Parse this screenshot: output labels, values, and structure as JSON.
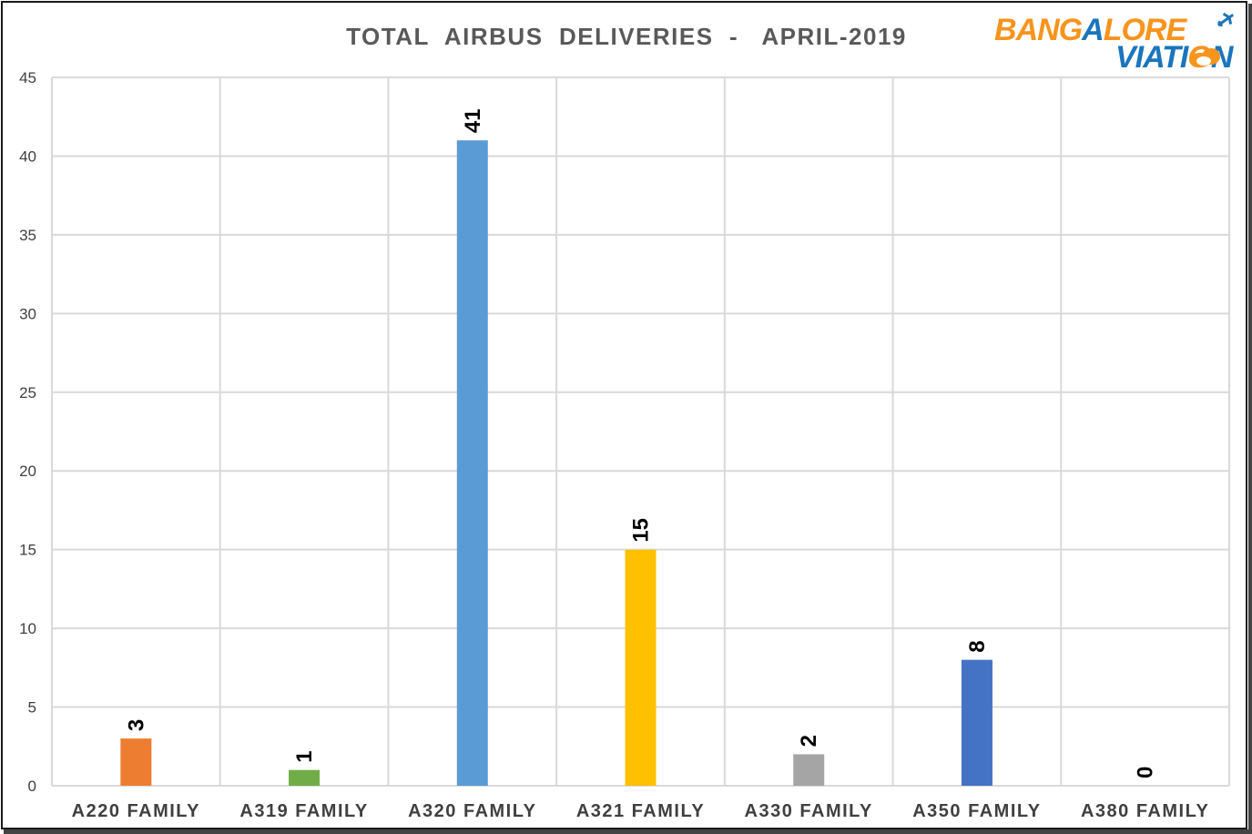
{
  "chart_data": {
    "type": "bar",
    "title": "TOTAL  AIRBUS  DELIVERIES  -   APRIL-2019",
    "categories": [
      "A220 FAMILY",
      "A319 FAMILY",
      "A320 FAMILY",
      "A321 FAMILY",
      "A330 FAMILY",
      "A350 FAMILY",
      "A380 FAMILY"
    ],
    "values": [
      3,
      1,
      41,
      15,
      2,
      8,
      0
    ],
    "colors": [
      "#ED7D31",
      "#70AD47",
      "#5B9BD5",
      "#FFC000",
      "#A5A5A5",
      "#4472C4",
      "#264478"
    ],
    "ylim": [
      0,
      45
    ],
    "yticks": [
      0,
      5,
      10,
      15,
      20,
      25,
      30,
      35,
      40,
      45
    ],
    "xlabel": "",
    "ylabel": "",
    "grid": true,
    "legend": "none"
  },
  "logo": {
    "line1": "BANGALORE",
    "line2": "VIATION",
    "orange": "#F7941D",
    "blue": "#1B75BC",
    "icon": "airplane-icon"
  }
}
